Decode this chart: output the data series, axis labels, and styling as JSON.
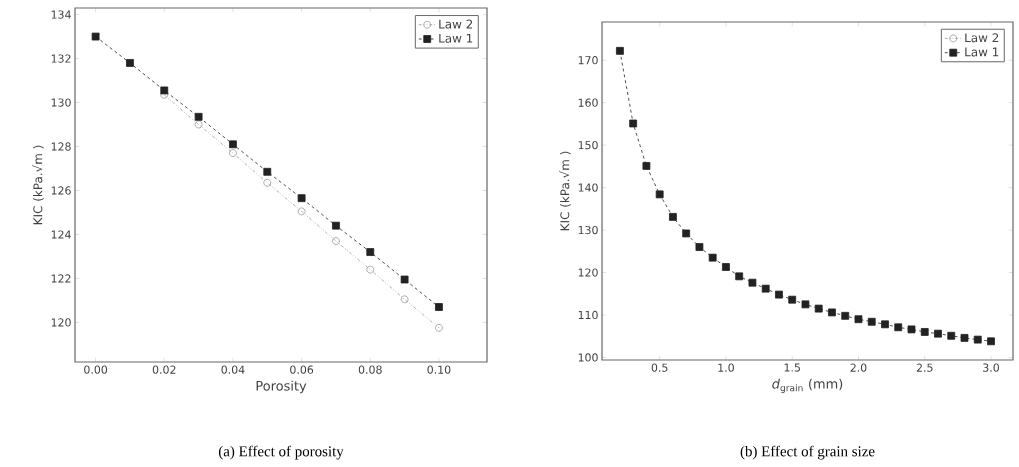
{
  "chart_data": [
    {
      "type": "line",
      "xlabel": "Porosity",
      "ylabel": "KIC (kPa.√m )",
      "annotations": [
        "(a) Effect of porosity"
      ],
      "legend": "top right",
      "x": [
        0.0,
        0.01,
        0.02,
        0.03,
        0.04,
        0.05,
        0.06,
        0.07,
        0.08,
        0.09,
        0.1
      ],
      "xlim": [
        -0.006,
        0.114
      ],
      "ylim": [
        118.2,
        134.3
      ],
      "xticks": [
        {
          "value": 0,
          "label": "0.00"
        },
        {
          "value": 0.02,
          "label": "0.02"
        },
        {
          "value": 0.04,
          "label": "0.04"
        },
        {
          "value": 0.06,
          "label": "0.06"
        },
        {
          "value": 0.08,
          "label": "0.08"
        },
        {
          "value": 0.1,
          "label": "0.10"
        }
      ],
      "yticks": [
        120,
        122,
        124,
        126,
        128,
        130,
        132,
        134
      ],
      "series": [
        {
          "name": "Law 2",
          "color": "#999999",
          "marker": "circle",
          "line_style": "dotted",
          "values": [
            null,
            null,
            130.35,
            129.0,
            127.7,
            126.35,
            125.05,
            123.7,
            122.4,
            121.05,
            119.75
          ]
        },
        {
          "name": "Law 1",
          "color": "#222222",
          "marker": "square",
          "line_style": "dashed",
          "values": [
            133.0,
            131.8,
            130.55,
            129.35,
            128.1,
            126.85,
            125.65,
            124.4,
            123.2,
            121.95,
            120.7
          ]
        }
      ]
    },
    {
      "type": "line",
      "xlabel": "*d*$_{grain}$ (mm)",
      "ylabel": "KIC (kPa.√m )",
      "annotations": [
        "(b) Effect of grain size"
      ],
      "legend": "top right",
      "x": [
        0.2,
        0.3,
        0.4,
        0.5,
        0.6,
        0.7,
        0.8,
        0.9,
        1.0,
        1.1,
        1.2,
        1.3,
        1.4,
        1.5,
        1.6,
        1.7,
        1.8,
        1.9,
        2.0,
        2.1,
        2.2,
        2.3,
        2.4,
        2.5,
        2.6,
        2.7,
        2.8,
        2.9,
        3.0
      ],
      "xlim": [
        0.065,
        3.166
      ],
      "ylim": [
        99.4,
        179
      ],
      "xticks": [
        {
          "value": 0.5,
          "label": "0.5"
        },
        {
          "value": 1,
          "label": "1.0"
        },
        {
          "value": 1.5,
          "label": "1.5"
        },
        {
          "value": 2,
          "label": "2.0"
        },
        {
          "value": 2.5,
          "label": "2.5"
        },
        {
          "value": 3,
          "label": "3.0"
        }
      ],
      "yticks": [
        100,
        110,
        120,
        130,
        140,
        150,
        160,
        170
      ],
      "series": [
        {
          "name": "Law 2",
          "color": "#999999",
          "marker": "circle",
          "line_style": "dotted",
          "values": [
            null,
            null,
            null,
            null,
            null,
            null,
            null,
            null,
            null,
            null,
            null,
            null,
            null,
            null,
            null,
            null,
            null,
            null,
            null,
            null,
            null,
            null,
            null,
            null,
            null,
            null,
            null,
            null,
            null
          ]
        },
        {
          "name": "Law 1",
          "color": "#222222",
          "marker": "square",
          "line_style": "dashed",
          "values": [
            172.2,
            155.1,
            145.1,
            138.4,
            133.1,
            129.2,
            126.0,
            123.5,
            121.3,
            119.1,
            117.6,
            116.2,
            114.8,
            113.6,
            112.5,
            111.5,
            110.6,
            109.8,
            109.0,
            108.4,
            107.8,
            107.1,
            106.6,
            106.0,
            105.6,
            105.1,
            104.6,
            104.2,
            103.8
          ]
        }
      ]
    }
  ]
}
